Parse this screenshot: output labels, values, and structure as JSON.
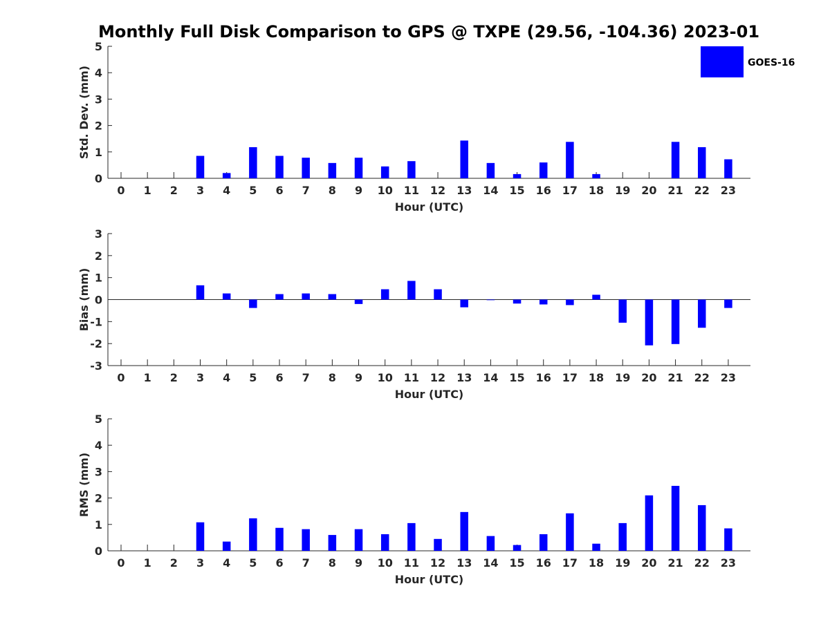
{
  "figure": {
    "title": "Monthly Full Disk Comparison to GPS @ TXPE (29.56, -104.36) 2023-01",
    "legend_label": "GOES-16",
    "series_color": "#0000ff"
  },
  "chart_data": [
    {
      "type": "bar",
      "title": "Monthly Full Disk Comparison to GPS @ TXPE (29.56, -104.36) 2023-01",
      "xlabel": "Hour (UTC)",
      "ylabel": "Std. Dev. (mm)",
      "ylim": [
        0,
        5
      ],
      "yticks": [
        0,
        1,
        2,
        3,
        4,
        5
      ],
      "categories": [
        "0",
        "1",
        "2",
        "3",
        "4",
        "5",
        "6",
        "7",
        "8",
        "9",
        "10",
        "11",
        "12",
        "13",
        "14",
        "15",
        "16",
        "17",
        "18",
        "19",
        "20",
        "21",
        "22",
        "23"
      ],
      "series": [
        {
          "name": "GOES-16",
          "values": [
            null,
            null,
            null,
            0.85,
            0.2,
            1.18,
            0.85,
            0.78,
            0.58,
            0.78,
            0.45,
            0.65,
            null,
            1.43,
            0.58,
            0.16,
            0.6,
            1.38,
            0.16,
            null,
            null,
            1.38,
            1.18,
            0.72
          ]
        }
      ],
      "legend": "top-right",
      "grid": false
    },
    {
      "type": "bar",
      "xlabel": "Hour (UTC)",
      "ylabel": "Bias (mm)",
      "ylim": [
        -3,
        3
      ],
      "yticks": [
        -3,
        -2,
        -1,
        0,
        1,
        2,
        3
      ],
      "categories": [
        "0",
        "1",
        "2",
        "3",
        "4",
        "5",
        "6",
        "7",
        "8",
        "9",
        "10",
        "11",
        "12",
        "13",
        "14",
        "15",
        "16",
        "17",
        "18",
        "19",
        "20",
        "21",
        "22",
        "23"
      ],
      "series": [
        {
          "name": "GOES-16",
          "values": [
            null,
            null,
            null,
            0.65,
            0.28,
            -0.38,
            0.25,
            0.28,
            0.25,
            -0.2,
            0.47,
            0.85,
            0.47,
            -0.35,
            -0.02,
            -0.18,
            -0.22,
            -0.25,
            0.22,
            -1.05,
            -2.08,
            -2.02,
            -1.28,
            -0.38
          ]
        }
      ],
      "grid": false
    },
    {
      "type": "bar",
      "xlabel": "Hour (UTC)",
      "ylabel": "RMS (mm)",
      "ylim": [
        0,
        5
      ],
      "yticks": [
        0,
        1,
        2,
        3,
        4,
        5
      ],
      "categories": [
        "0",
        "1",
        "2",
        "3",
        "4",
        "5",
        "6",
        "7",
        "8",
        "9",
        "10",
        "11",
        "12",
        "13",
        "14",
        "15",
        "16",
        "17",
        "18",
        "19",
        "20",
        "21",
        "22",
        "23"
      ],
      "series": [
        {
          "name": "GOES-16",
          "values": [
            null,
            null,
            null,
            1.08,
            0.35,
            1.23,
            0.87,
            0.82,
            0.6,
            0.82,
            0.63,
            1.05,
            0.45,
            1.47,
            0.56,
            0.22,
            0.63,
            1.42,
            0.27,
            1.05,
            2.1,
            2.46,
            1.73,
            0.85
          ]
        }
      ],
      "grid": false
    }
  ]
}
